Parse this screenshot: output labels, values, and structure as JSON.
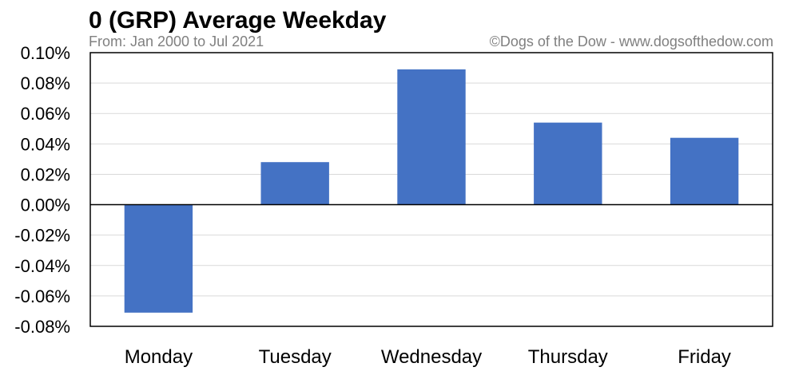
{
  "chart_data": {
    "type": "bar",
    "title": "0 (GRP) Average Weekday",
    "subtitle": "From: Jan 2000 to Jul 2021",
    "credit": "©Dogs of the Dow - www.dogsofthedow.com",
    "categories": [
      "Monday",
      "Tuesday",
      "Wednesday",
      "Thursday",
      "Friday"
    ],
    "values": [
      -0.071,
      0.028,
      0.089,
      0.054,
      0.044
    ],
    "unit": "%",
    "ylim": [
      -0.08,
      0.1
    ],
    "yticks": [
      0.1,
      0.08,
      0.06,
      0.04,
      0.02,
      0.0,
      -0.02,
      -0.04,
      -0.06,
      -0.08
    ],
    "ytick_labels": [
      "0.10%",
      "0.08%",
      "0.06%",
      "0.04%",
      "0.02%",
      "0.00%",
      "-0.02%",
      "-0.04%",
      "-0.06%",
      "-0.08%"
    ],
    "grid": true,
    "bar_color": "#4472C4"
  }
}
